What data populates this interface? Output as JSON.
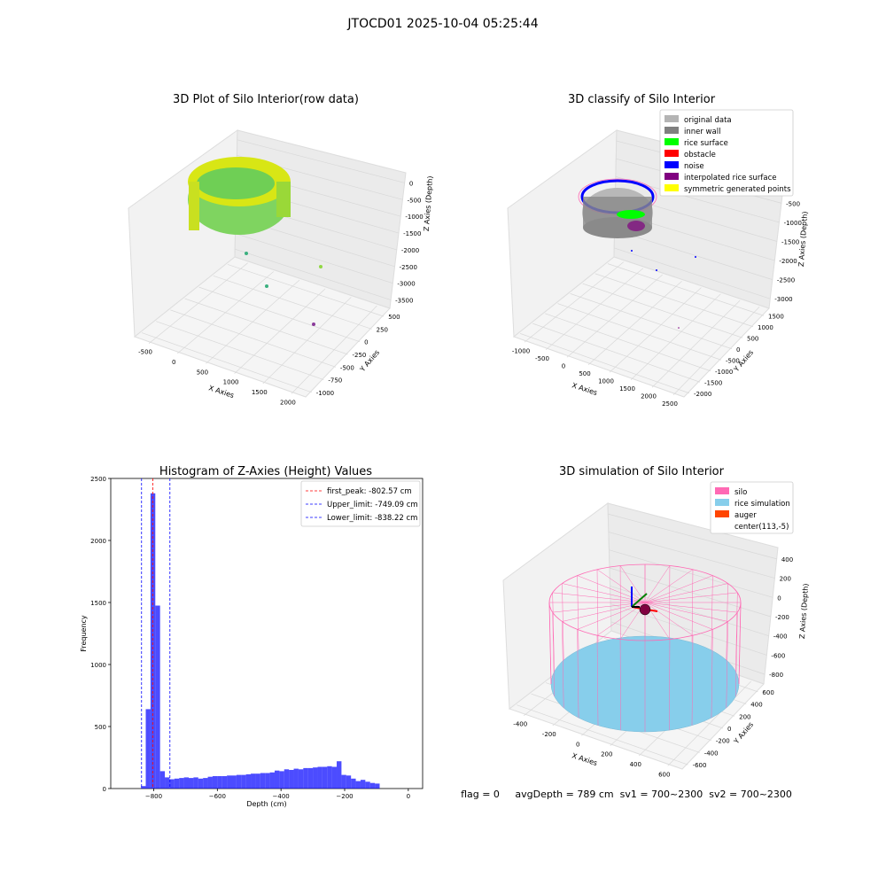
{
  "suptitle": "JTOCD01 2025-10-04 05:25:44",
  "chart_data": [
    {
      "type": "scatter",
      "title": "3D Plot of Silo Interior(row data)",
      "xlabel": "X Axies",
      "ylabel": "Y Axies",
      "zlabel": "Z Axies (Depth)",
      "x_ticks": [
        "-500",
        "0",
        "500",
        "1000",
        "1500",
        "2000"
      ],
      "y_ticks": [
        "-1000",
        "-750",
        "-500",
        "-250",
        "0",
        "250",
        "500"
      ],
      "z_ticks": [
        "0",
        "-500",
        "-1000",
        "-1500",
        "-2000",
        "-2500",
        "-3000",
        "-3500"
      ],
      "grid": true
    },
    {
      "type": "scatter",
      "title": "3D classify of Silo Interior",
      "xlabel": "X Axies",
      "ylabel": "Y Axies",
      "zlabel": "Z Axies (Depth)",
      "x_ticks": [
        "-1000",
        "-500",
        "0",
        "500",
        "1000",
        "1500",
        "2000",
        "2500"
      ],
      "y_ticks": [
        "-2000",
        "-1500",
        "-1000",
        "-500",
        "0",
        "500",
        "1000",
        "1500"
      ],
      "z_ticks": [
        "0",
        "-500",
        "-1000",
        "-1500",
        "-2000",
        "-2500",
        "-3000"
      ],
      "legend": [
        {
          "name": "original data",
          "color": "#b4b4b4"
        },
        {
          "name": "inner wall",
          "color": "#808080"
        },
        {
          "name": "rice surface",
          "color": "#00ff00"
        },
        {
          "name": "obstacle",
          "color": "#ff0000"
        },
        {
          "name": "noise",
          "color": "#0000ff"
        },
        {
          "name": "interpolated rice surface",
          "color": "#800080"
        },
        {
          "name": "symmetric generated points",
          "color": "#ffff00"
        }
      ],
      "legend_loc": "upper-right",
      "grid": true
    },
    {
      "type": "bar",
      "title": "Histogram of Z-Axies (Height) Values",
      "xlabel": "Depth (cm)",
      "ylabel": "Frequency",
      "xlim": [
        -935,
        45
      ],
      "ylim": [
        0,
        2500
      ],
      "x_ticks": [
        -800,
        -600,
        -400,
        -200,
        0
      ],
      "y_ticks": [
        0,
        500,
        1000,
        1500,
        2000,
        2500
      ],
      "bin_width": 15,
      "bin_start": -840,
      "values": [
        20,
        640,
        2380,
        1475,
        140,
        90,
        75,
        80,
        85,
        90,
        85,
        90,
        80,
        85,
        95,
        100,
        100,
        100,
        105,
        105,
        110,
        110,
        115,
        120,
        120,
        125,
        125,
        130,
        145,
        140,
        155,
        150,
        160,
        155,
        165,
        165,
        170,
        175,
        175,
        180,
        175,
        220,
        110,
        105,
        80,
        60,
        70,
        55,
        45,
        40
      ],
      "bar_color": "#0000ff",
      "lines": [
        {
          "label": "first_peak: -802.57 cm",
          "x": -802.57,
          "color": "#ff0000"
        },
        {
          "label": "Upper_limit: -749.09 cm",
          "x": -749.09,
          "color": "#0000ff"
        },
        {
          "label": "Lower_limit: -838.22 cm",
          "x": -838.22,
          "color": "#0000ff"
        }
      ],
      "legend_loc": "upper-right"
    },
    {
      "type": "scatter",
      "title": "3D simulation of Silo Interior",
      "xlabel": "X Axies",
      "ylabel": "Y Axies",
      "zlabel": "Z Axies (Depth)",
      "x_ticks": [
        "-400",
        "-200",
        "0",
        "200",
        "400",
        "600"
      ],
      "y_ticks": [
        "-600",
        "-400",
        "-200",
        "0",
        "200",
        "400",
        "600"
      ],
      "z_ticks": [
        "400",
        "200",
        "0",
        "-200",
        "-400",
        "-600",
        "-800"
      ],
      "legend": [
        {
          "name": "silo",
          "color": "#ff69b4"
        },
        {
          "name": "rice simulation",
          "color": "#87ceeb"
        },
        {
          "name": "auger",
          "color": "#ff4500"
        },
        {
          "name": "center(113,-5)",
          "color": "#ffffff"
        }
      ],
      "legend_loc": "upper-right",
      "grid": true
    }
  ],
  "footer": "flag = 0     avgDepth = 789 cm  sv1 = 700~2300  sv2 = 700~2300"
}
